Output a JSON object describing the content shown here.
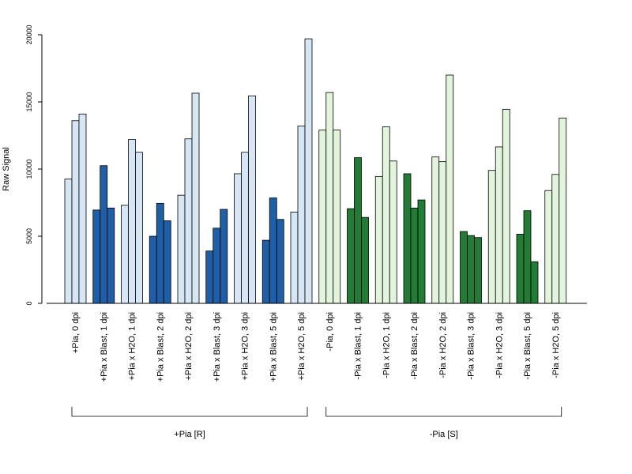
{
  "chart_data": {
    "type": "bar",
    "ylabel": "Raw Signal",
    "ylim": [
      0,
      20000
    ],
    "yticks": [
      0,
      5000,
      10000,
      15000,
      20000
    ],
    "colors": {
      "plus_light": "#d6e6f5",
      "plus_dark": "#1f5fa8",
      "minus_light": "#e3f4dc",
      "minus_dark": "#237b35",
      "border": "#000000"
    },
    "groups": [
      {
        "label": "+Pia, 0 dpi",
        "values": [
          9250,
          13600,
          14100
        ],
        "shade": "plus_light"
      },
      {
        "label": "+Pia x Blast, 1 dpi",
        "values": [
          6950,
          10250,
          7100
        ],
        "shade": "plus_dark"
      },
      {
        "label": "+Pia x H2O, 1 dpi",
        "values": [
          7300,
          12200,
          11250
        ],
        "shade": "plus_light"
      },
      {
        "label": "+Pia x Blast, 2 dpi",
        "values": [
          5000,
          7450,
          6150
        ],
        "shade": "plus_dark"
      },
      {
        "label": "+Pia x H2O, 2 dpi",
        "values": [
          8050,
          12250,
          15650
        ],
        "shade": "plus_light"
      },
      {
        "label": "+Pia x Blast, 3 dpi",
        "values": [
          3900,
          5600,
          7000
        ],
        "shade": "plus_dark"
      },
      {
        "label": "+Pia x H2O, 3 dpi",
        "values": [
          9650,
          11250,
          15450
        ],
        "shade": "plus_light"
      },
      {
        "label": "+Pia x Blast, 5 dpi",
        "values": [
          4700,
          7850,
          6250
        ],
        "shade": "plus_dark"
      },
      {
        "label": "+Pia x H2O, 5 dpi",
        "values": [
          6800,
          13200,
          19700
        ],
        "shade": "plus_light"
      },
      {
        "label": "-Pia, 0 dpi",
        "values": [
          12900,
          15700,
          12900
        ],
        "shade": "minus_light"
      },
      {
        "label": "-Pia x Blast, 1 dpi",
        "values": [
          7050,
          10850,
          6400
        ],
        "shade": "minus_dark"
      },
      {
        "label": "-Pia x H2O, 1 dpi",
        "values": [
          9450,
          13150,
          10600
        ],
        "shade": "minus_light"
      },
      {
        "label": "-Pia x Blast, 2 dpi",
        "values": [
          9650,
          7100,
          7700
        ],
        "shade": "minus_dark"
      },
      {
        "label": "-Pia x H2O, 2 dpi",
        "values": [
          10900,
          10550,
          17000
        ],
        "shade": "minus_light"
      },
      {
        "label": "-Pia x Blast, 3 dpi",
        "values": [
          5350,
          5050,
          4900
        ],
        "shade": "minus_dark"
      },
      {
        "label": "-Pia x H2O, 3 dpi",
        "values": [
          9900,
          11650,
          14450
        ],
        "shade": "minus_light"
      },
      {
        "label": "-Pia x Blast, 5 dpi",
        "values": [
          5150,
          6900,
          3100
        ],
        "shade": "minus_dark"
      },
      {
        "label": "-Pia x H2O, 5 dpi",
        "values": [
          8400,
          9600,
          13800
        ],
        "shade": "minus_light"
      }
    ],
    "brackets": [
      {
        "label": "+Pia [R]",
        "from": 0,
        "to": 8
      },
      {
        "label": "-Pia [S]",
        "from": 9,
        "to": 17
      }
    ]
  }
}
